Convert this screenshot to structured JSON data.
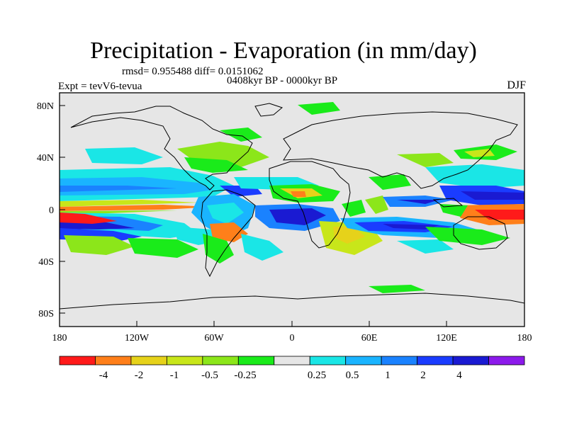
{
  "title": "Precipitation - Evaporation (in mm/day)",
  "stats": "rmsd= 0.955488 diff= 0.0151062",
  "period": "0408kyr BP - 0000kyr BP",
  "expt": "Expt = tevV6-tevua",
  "season": "DJF",
  "lat_ticks": [
    "80N",
    "40N",
    "0",
    "40S",
    "80S"
  ],
  "lon_ticks": [
    "180",
    "120W",
    "60W",
    "0",
    "60E",
    "120E",
    "180"
  ],
  "colorbar": {
    "colors": [
      "#ff1a1a",
      "#ff7f1a",
      "#e6d21a",
      "#c8e61a",
      "#8ce61a",
      "#1aeb1a",
      "#e6e6e6",
      "#1ae6e6",
      "#1ab4ff",
      "#1a82ff",
      "#1a3cff",
      "#1a1ad2",
      "#8c1aeb"
    ],
    "labels": [
      "-4",
      "-2",
      "-1",
      "-0.5",
      "-0.25",
      "0.25",
      "0.5",
      "1",
      "2",
      "4"
    ]
  },
  "colors": {
    "land_neutral": "#e6e6e6",
    "coastline": "#000000"
  }
}
